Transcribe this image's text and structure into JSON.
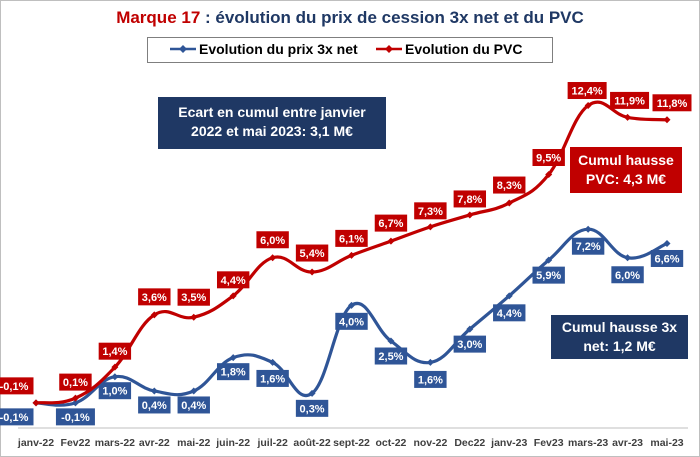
{
  "title": {
    "brand": "Marque 17",
    "rest": " : évolution du prix de cession 3x net et du PVC"
  },
  "colors": {
    "blue": "#2f5597",
    "red": "#c00000",
    "navy": "#1f3864"
  },
  "annotations": {
    "ecart": {
      "line1": "Ecart en cumul entre janvier",
      "line2": "2022 et mai 2023: 3,1 M€"
    },
    "pvc": {
      "line1": "Cumul hausse",
      "line2": "PVC: 4,3 M€"
    },
    "net": {
      "line1": "Cumul hausse 3x",
      "line2": "net: 1,2 M€"
    }
  },
  "chart_data": {
    "type": "line",
    "title": "Marque 17 : évolution du prix de cession 3x net et du PVC",
    "legend": "top-center",
    "grid": false,
    "categories": [
      "janv-22",
      "Fev22",
      "mars-22",
      "avr-22",
      "mai-22",
      "juin-22",
      "juil-22",
      "août-22",
      "sept-22",
      "oct-22",
      "nov-22",
      "Dec22",
      "janv-23",
      "Fev23",
      "mars-23",
      "avr-23",
      "mai-23"
    ],
    "ylim": [
      -0.4,
      12.8
    ],
    "series": [
      {
        "name": "Evolution du prix 3x net",
        "color": "#2f5597",
        "values": [
          -0.1,
          -0.1,
          1.0,
          0.4,
          0.4,
          1.8,
          1.6,
          0.3,
          4.0,
          2.5,
          1.6,
          3.0,
          4.4,
          5.9,
          7.2,
          6.0,
          6.6
        ],
        "labels": [
          "-0,1%",
          "-0,1%",
          "1,0%",
          "0,4%",
          "0,4%",
          "1,8%",
          "1,6%",
          "0,3%",
          "4,0%",
          "2,5%",
          "1,6%",
          "3,0%",
          "4,4%",
          "5,9%",
          "7,2%",
          "6,0%",
          "6,6%"
        ]
      },
      {
        "name": "Evolution du PVC",
        "color": "#c00000",
        "values": [
          -0.1,
          0.1,
          1.4,
          3.6,
          3.5,
          4.4,
          6.0,
          5.4,
          6.1,
          6.7,
          7.3,
          7.8,
          8.3,
          9.5,
          12.4,
          11.9,
          11.8
        ],
        "labels": [
          "-0,1%",
          "0,1%",
          "1,4%",
          "3,6%",
          "3,5%",
          "4,4%",
          "6,0%",
          "5,4%",
          "6,1%",
          "6,7%",
          "7,3%",
          "7,8%",
          "8,3%",
          "9,5%",
          "12,4%",
          "11,9%",
          "11,8%"
        ]
      }
    ]
  }
}
